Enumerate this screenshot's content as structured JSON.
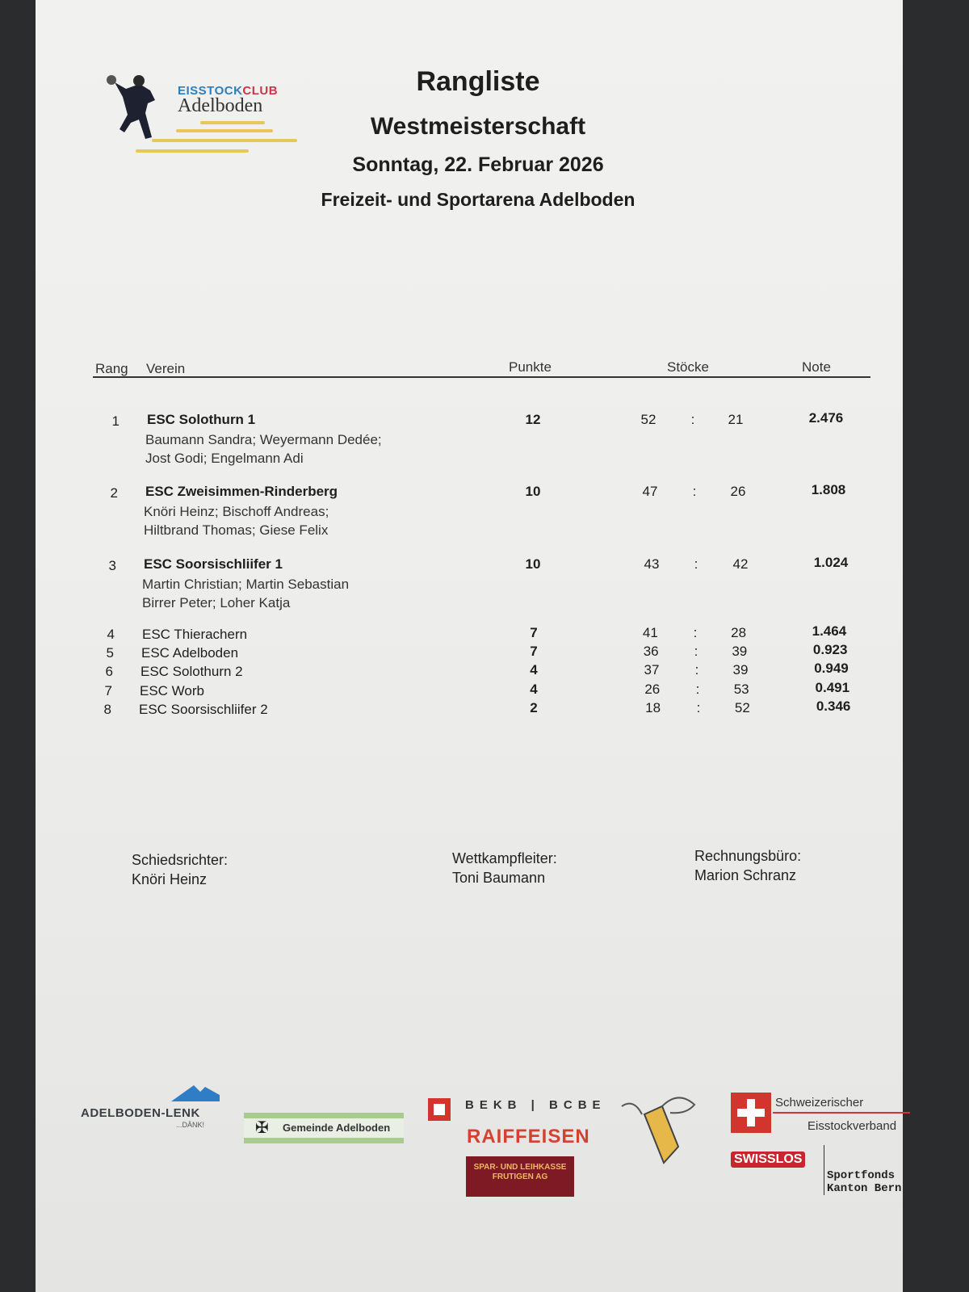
{
  "logo": {
    "line1a": "EISSTOCK",
    "line1b": "CLUB",
    "line2": "Adelboden"
  },
  "header": {
    "title": "Rangliste",
    "subtitle": "Westmeisterschaft",
    "date": "Sonntag, 22. Februar 2026",
    "venue": "Freizeit- und Sportarena Adelboden"
  },
  "table": {
    "columns": {
      "rank": "Rang",
      "club": "Verein",
      "points": "Punkte",
      "stocks": "Stöcke",
      "note": "Note"
    },
    "rows": [
      {
        "rank": "1",
        "club": "ESC Solothurn 1",
        "members": [
          "Baumann Sandra; Weyermann Dedée;",
          "Jost Godi; Engelmann Adi"
        ],
        "points": "12",
        "for": "52",
        "sep": ":",
        "against": "21",
        "note": "2.476"
      },
      {
        "rank": "2",
        "club": "ESC Zweisimmen-Rinderberg",
        "members": [
          "Knöri Heinz; Bischoff Andreas;",
          "Hiltbrand Thomas; Giese Felix"
        ],
        "points": "10",
        "for": "47",
        "sep": ":",
        "against": "26",
        "note": "1.808"
      },
      {
        "rank": "3",
        "club": "ESC Soorsischliifer 1",
        "members": [
          "Martin Christian; Martin Sebastian",
          "Birrer Peter; Loher Katja"
        ],
        "points": "10",
        "for": "43",
        "sep": ":",
        "against": "42",
        "note": "1.024"
      },
      {
        "rank": "4",
        "club": "ESC Thierachern",
        "members": [],
        "points": "7",
        "for": "41",
        "sep": ":",
        "against": "28",
        "note": "1.464"
      },
      {
        "rank": "5",
        "club": "ESC Adelboden",
        "members": [],
        "points": "7",
        "for": "36",
        "sep": ":",
        "against": "39",
        "note": "0.923"
      },
      {
        "rank": "6",
        "club": "ESC Solothurn 2",
        "members": [],
        "points": "4",
        "for": "37",
        "sep": ":",
        "against": "39",
        "note": "0.949"
      },
      {
        "rank": "7",
        "club": "ESC Worb",
        "members": [],
        "points": "4",
        "for": "26",
        "sep": ":",
        "against": "53",
        "note": "0.491"
      },
      {
        "rank": "8",
        "club": "ESC Soorsischliifer 2",
        "members": [],
        "points": "2",
        "for": "18",
        "sep": ":",
        "against": "52",
        "note": "0.346"
      }
    ]
  },
  "officials": [
    {
      "role": "Schiedsrichter:",
      "name": "Knöri Heinz"
    },
    {
      "role": "Wettkampfleiter:",
      "name": "Toni Baumann"
    },
    {
      "role": "Rechnungsbüro:",
      "name": "Marion Schranz"
    }
  ],
  "sponsors": {
    "adelboden_lenk": {
      "name": "ADELBODEN-LENK",
      "tag": "...DÄNK!"
    },
    "gemeinde": "Gemeinde Adelboden",
    "bekb": "BEKB | BCBE",
    "raiffeisen": "RAIFFEISEN",
    "spar": [
      "SPAR- UND LEIHKASSE",
      "FRUTIGEN AG"
    ],
    "verband": [
      "Schweizerischer",
      "Eisstockverband"
    ],
    "swisslos": "SWISSLOS",
    "sportfonds": [
      "Sportfonds",
      "Kanton Bern"
    ]
  },
  "colors": {
    "club_blue": "#2a7fc0",
    "club_red": "#d0344a",
    "raiffeisen": "#d5412f",
    "spar": "#7d1a24",
    "verband_red": "#d2352e",
    "gemeinde_green": "#a8cc8e"
  }
}
